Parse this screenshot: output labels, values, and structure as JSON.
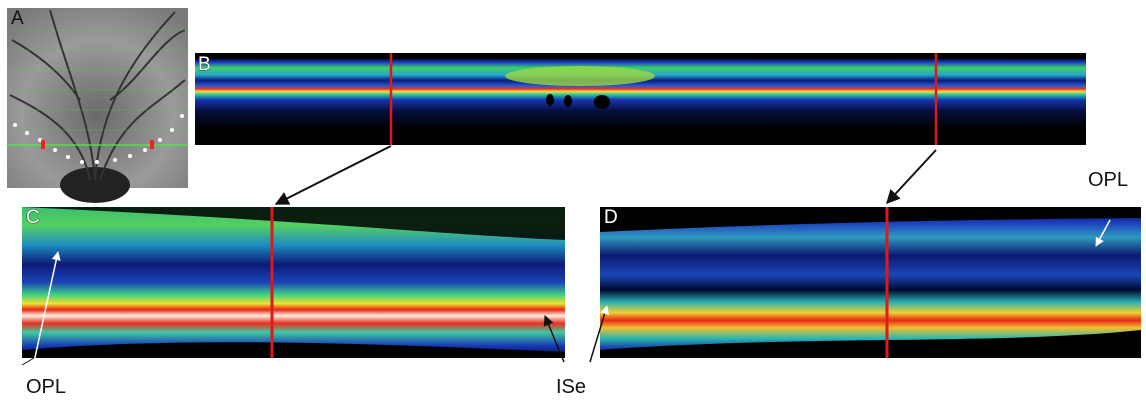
{
  "panels": [
    {
      "label": "A"
    },
    {
      "label": "B"
    },
    {
      "label": "C"
    },
    {
      "label": "D"
    }
  ],
  "annotations": [
    {
      "text": "OPL"
    },
    {
      "text": "ISe"
    },
    {
      "text": "OPL"
    }
  ]
}
